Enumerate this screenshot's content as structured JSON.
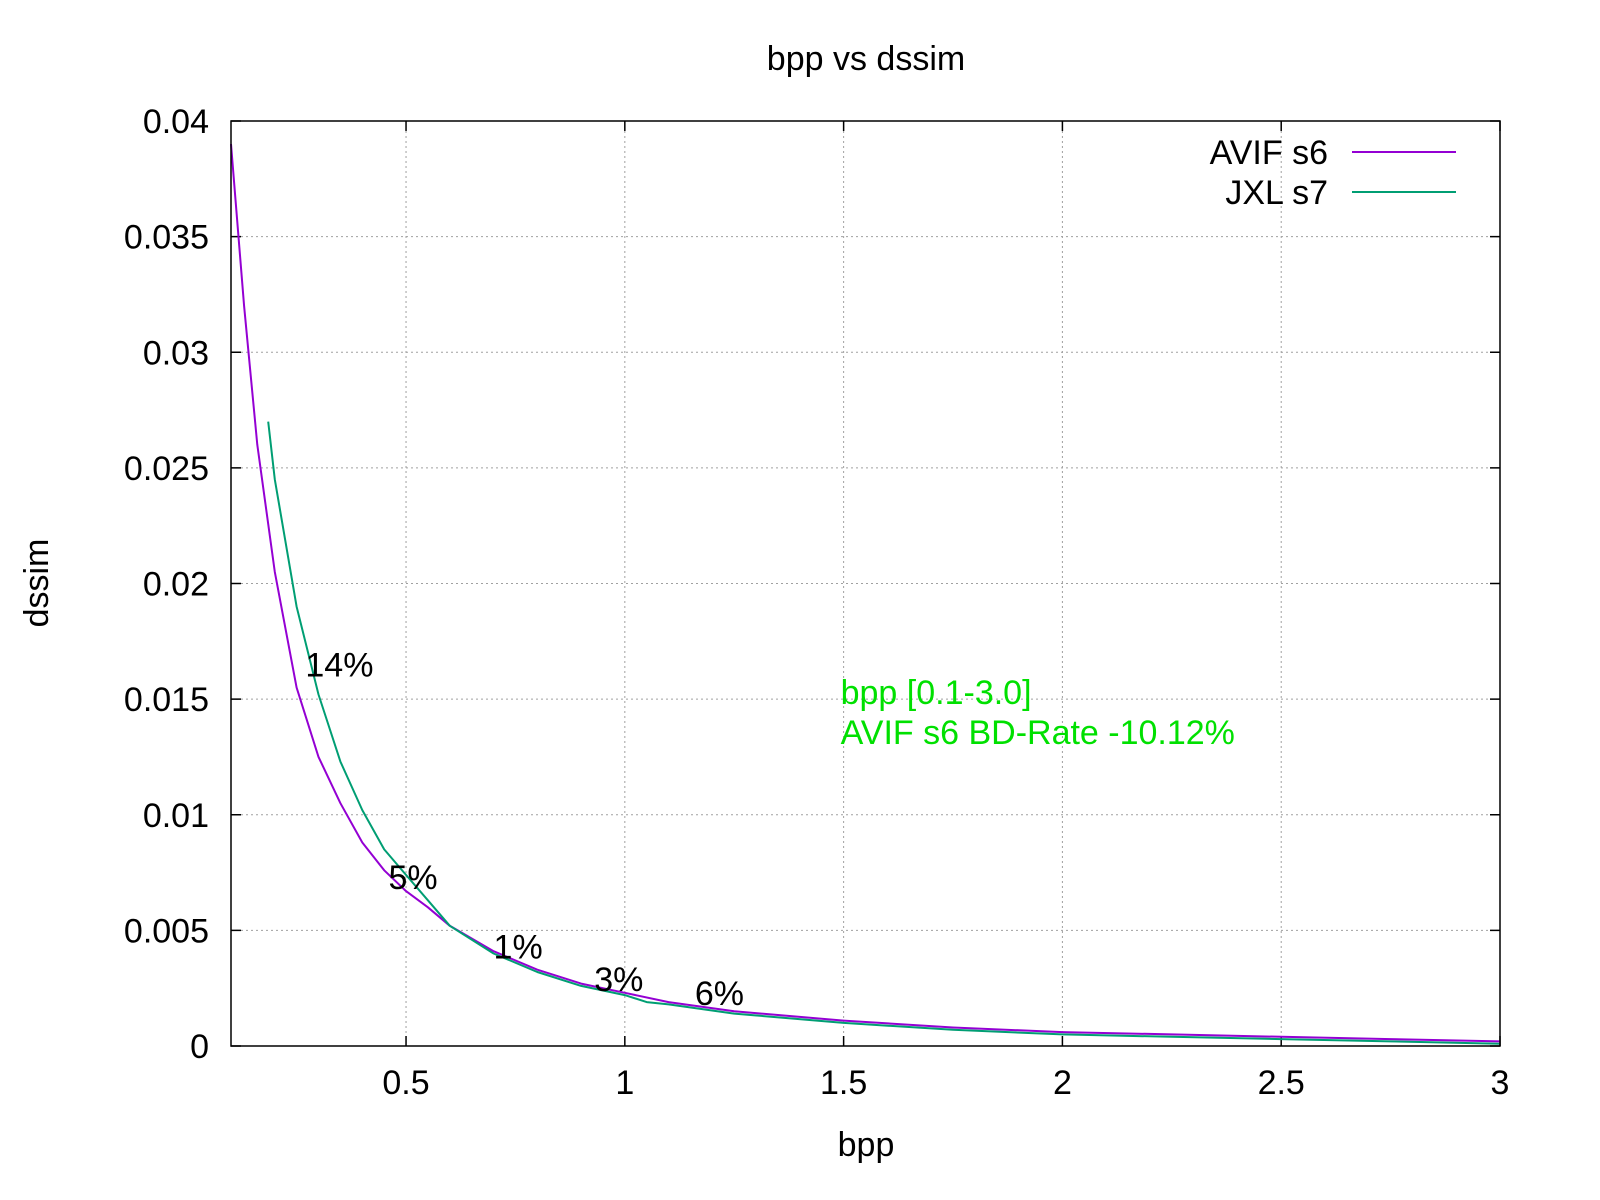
{
  "chart_data": {
    "type": "line",
    "title": "bpp vs dssim",
    "xlabel": "bpp",
    "ylabel": "dssim",
    "xlim": [
      0.1,
      3.0
    ],
    "ylim": [
      0,
      0.04
    ],
    "xticks": [
      {
        "value": 0.5,
        "label": "0.5"
      },
      {
        "value": 1,
        "label": "1"
      },
      {
        "value": 1.5,
        "label": "1.5"
      },
      {
        "value": 2,
        "label": "2"
      },
      {
        "value": 2.5,
        "label": "2.5"
      },
      {
        "value": 3,
        "label": "3"
      }
    ],
    "yticks": [
      {
        "value": 0,
        "label": "0"
      },
      {
        "value": 0.005,
        "label": "0.005"
      },
      {
        "value": 0.01,
        "label": "0.01"
      },
      {
        "value": 0.015,
        "label": "0.015"
      },
      {
        "value": 0.02,
        "label": "0.02"
      },
      {
        "value": 0.025,
        "label": "0.025"
      },
      {
        "value": 0.03,
        "label": "0.03"
      },
      {
        "value": 0.035,
        "label": "0.035"
      },
      {
        "value": 0.04,
        "label": "0.04"
      }
    ],
    "grid": true,
    "legend_position": "top-right",
    "series": [
      {
        "name": "AVIF s6",
        "color": "#9400d3",
        "x": [
          0.1,
          0.13,
          0.16,
          0.2,
          0.25,
          0.3,
          0.35,
          0.4,
          0.45,
          0.5,
          0.55,
          0.6,
          0.7,
          0.8,
          0.9,
          1.0,
          1.1,
          1.25,
          1.5,
          1.75,
          2.0,
          2.25,
          2.5,
          2.75,
          3.0
        ],
        "y": [
          0.039,
          0.032,
          0.026,
          0.0205,
          0.0155,
          0.0125,
          0.0105,
          0.0088,
          0.0076,
          0.0067,
          0.006,
          0.0052,
          0.0041,
          0.0033,
          0.0027,
          0.0023,
          0.0019,
          0.0015,
          0.0011,
          0.0008,
          0.0006,
          0.0005,
          0.0004,
          0.0003,
          0.0002
        ]
      },
      {
        "name": "JXL s7",
        "color": "#009e73",
        "x": [
          0.185,
          0.2,
          0.25,
          0.3,
          0.35,
          0.4,
          0.45,
          0.5,
          0.55,
          0.6,
          0.7,
          0.8,
          0.9,
          1.0,
          1.05,
          1.1,
          1.25,
          1.5,
          1.75,
          2.0,
          2.25,
          2.5,
          2.75,
          3.0
        ],
        "y": [
          0.027,
          0.0245,
          0.019,
          0.0152,
          0.0123,
          0.0102,
          0.0085,
          0.0074,
          0.0063,
          0.0052,
          0.004,
          0.0032,
          0.0026,
          0.0022,
          0.0019,
          0.0018,
          0.0014,
          0.001,
          0.0007,
          0.0005,
          0.0004,
          0.0003,
          0.0002,
          0.0001
        ]
      }
    ],
    "annotations": [
      {
        "text": "14%",
        "x": 0.27,
        "y": 0.0165
      },
      {
        "text": "5%",
        "x": 0.46,
        "y": 0.0073
      },
      {
        "text": "1%",
        "x": 0.7,
        "y": 0.0043
      },
      {
        "text": "3%",
        "x": 0.93,
        "y": 0.0029
      },
      {
        "text": "6%",
        "x": 1.16,
        "y": 0.0023
      }
    ],
    "bd_rate_text": {
      "line1": "bpp [0.1-3.0]",
      "line2": "AVIF s6 BD-Rate -10.12%",
      "color": "#00e000",
      "x": 1.5,
      "y": 0.0135
    }
  }
}
